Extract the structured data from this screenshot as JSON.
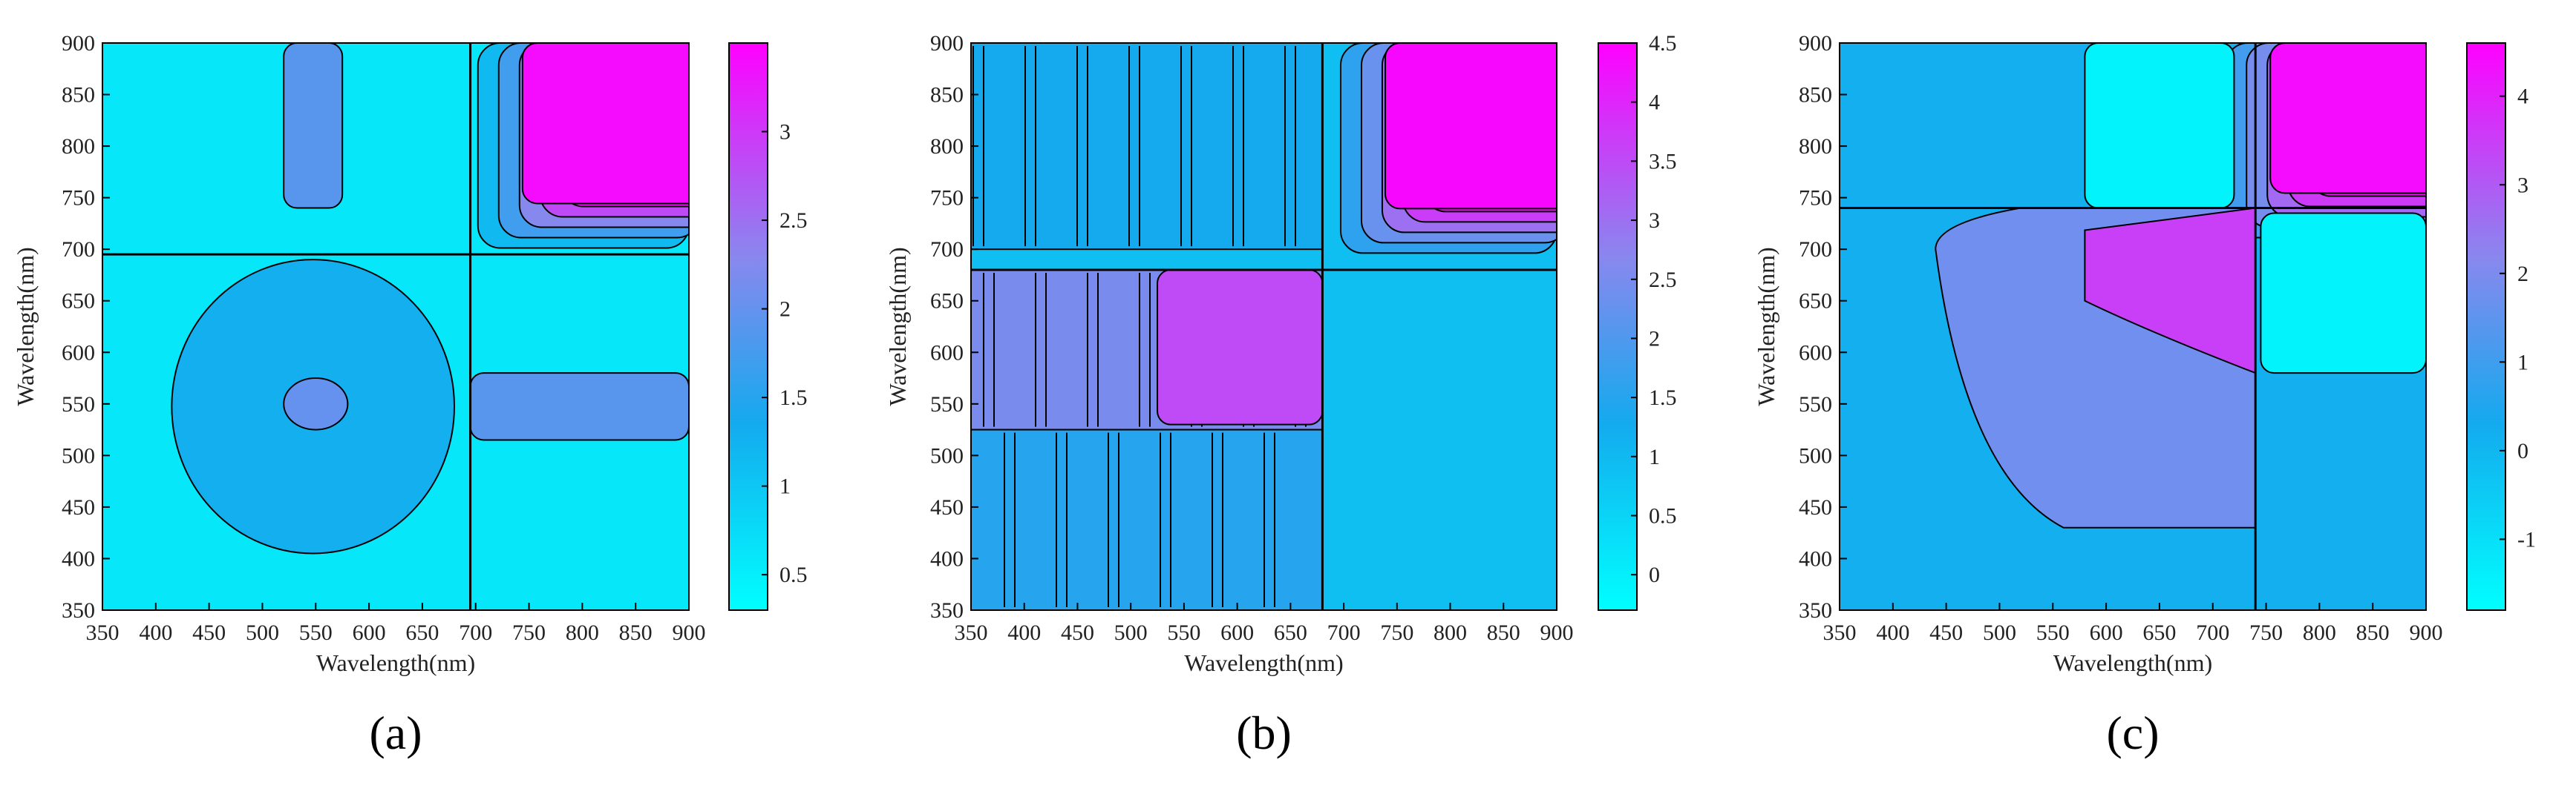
{
  "chart_data": [
    {
      "type": "heatmap",
      "panel_label": "(a)",
      "xlabel": "Wavelength(nm)",
      "ylabel": "Wavelength(nm)",
      "xlim": [
        350,
        900
      ],
      "ylim": [
        350,
        900
      ],
      "x_ticks": [
        "350",
        "400",
        "450",
        "500",
        "550",
        "600",
        "650",
        "700",
        "750",
        "800",
        "850",
        "900"
      ],
      "y_ticks": [
        "350",
        "400",
        "450",
        "500",
        "550",
        "600",
        "650",
        "700",
        "750",
        "800",
        "850",
        "900"
      ],
      "colorbar": {
        "range": [
          0.3,
          3.5
        ],
        "ticks": [
          "0.5",
          "1",
          "1.5",
          "2",
          "2.5",
          "3"
        ],
        "tick_values": [
          0.5,
          1,
          1.5,
          2,
          2.5,
          3
        ]
      },
      "colors": {
        "low": "#00ffff",
        "mid": "#22aaee",
        "midhigh": "#8888ee",
        "high": "#ff00ff"
      },
      "features": [
        {
          "desc": "high block",
          "x": [
            730,
            900
          ],
          "y": [
            730,
            900
          ],
          "value": 3.4,
          "rounded_corner": true
        },
        {
          "desc": "vertical band",
          "x": [
            520,
            575
          ],
          "y": [
            740,
            900
          ],
          "value": 1.9
        },
        {
          "desc": "horizontal band",
          "x": [
            695,
            900
          ],
          "y": [
            515,
            580
          ],
          "value": 1.9
        },
        {
          "desc": "central blob",
          "x": [
            415,
            680
          ],
          "y": [
            405,
            690
          ],
          "value": 1.3
        },
        {
          "desc": "center peak",
          "x": [
            520,
            580
          ],
          "y": [
            525,
            575
          ],
          "value": 2.0
        }
      ],
      "divider_lines": {
        "x": 695,
        "y": 695
      }
    },
    {
      "type": "heatmap",
      "panel_label": "(b)",
      "xlabel": "Wavelength(nm)",
      "ylabel": "Wavelength(nm)",
      "xlim": [
        350,
        900
      ],
      "ylim": [
        350,
        900
      ],
      "x_ticks": [
        "350",
        "400",
        "450",
        "500",
        "550",
        "600",
        "650",
        "700",
        "750",
        "800",
        "850",
        "900"
      ],
      "y_ticks": [
        "350",
        "400",
        "450",
        "500",
        "550",
        "600",
        "650",
        "700",
        "750",
        "800",
        "850",
        "900"
      ],
      "colorbar": {
        "range": [
          -0.3,
          4.5
        ],
        "ticks": [
          "0",
          "0.5",
          "1",
          "1.5",
          "2",
          "2.5",
          "3",
          "3.5",
          "4",
          "4.5"
        ],
        "tick_values": [
          0,
          0.5,
          1,
          1.5,
          2,
          2.5,
          3,
          3.5,
          4,
          4.5
        ]
      },
      "colors": {
        "low": "#00ffff",
        "mid": "#11aaee",
        "midhigh": "#8888ee",
        "high": "#ff00ff"
      },
      "features": [
        {
          "desc": "high block",
          "x": [
            725,
            900
          ],
          "y": [
            725,
            900
          ],
          "value": 4.4,
          "rounded_corner": true
        },
        {
          "desc": "left low-value block",
          "x": [
            350,
            680
          ],
          "y": [
            700,
            900
          ],
          "value": 1.3,
          "striped": true
        },
        {
          "desc": "mid block",
          "x": [
            350,
            680
          ],
          "y": [
            525,
            680
          ],
          "value": 2.5,
          "striped": true
        },
        {
          "desc": "bright core",
          "x": [
            525,
            680
          ],
          "y": [
            530,
            680
          ],
          "value": 3.5
        },
        {
          "desc": "bottom left block",
          "x": [
            350,
            680
          ],
          "y": [
            350,
            525
          ],
          "value": 1.5,
          "striped": true
        }
      ],
      "divider_lines": {
        "x": 680,
        "y": 680
      }
    },
    {
      "type": "heatmap",
      "panel_label": "(c)",
      "xlabel": "Wavelength(nm)",
      "ylabel": "Wavelength(nm)",
      "xlim": [
        350,
        900
      ],
      "ylim": [
        350,
        900
      ],
      "x_ticks": [
        "350",
        "400",
        "450",
        "500",
        "550",
        "600",
        "650",
        "700",
        "750",
        "800",
        "850",
        "900"
      ],
      "y_ticks": [
        "350",
        "400",
        "450",
        "500",
        "550",
        "600",
        "650",
        "700",
        "750",
        "800",
        "850",
        "900"
      ],
      "colorbar": {
        "range": [
          -1.8,
          4.6
        ],
        "ticks": [
          "-1",
          "0",
          "1",
          "2",
          "3",
          "4"
        ],
        "tick_values": [
          -1,
          0,
          1,
          2,
          3,
          4
        ]
      },
      "colors": {
        "low": "#00ffff",
        "mid": "#11aaee",
        "midhigh": "#8888ee",
        "high": "#ff00ff"
      },
      "features": [
        {
          "desc": "high block",
          "x": [
            740,
            900
          ],
          "y": [
            740,
            900
          ],
          "value": 4.4,
          "rounded_corner": true
        },
        {
          "desc": "upper low region",
          "x": [
            580,
            720
          ],
          "y": [
            740,
            900
          ],
          "value": -1.5
        },
        {
          "desc": "right low region",
          "x": [
            745,
            900
          ],
          "y": [
            580,
            735
          ],
          "value": -1.5
        },
        {
          "desc": "purple fan",
          "x": [
            440,
            740
          ],
          "y": [
            430,
            740
          ],
          "value": 1.8
        },
        {
          "desc": "magenta core",
          "x": [
            580,
            740
          ],
          "y": [
            560,
            740
          ],
          "value": 3.5
        }
      ],
      "divider_lines": {
        "x": 740,
        "y": 740
      }
    }
  ]
}
